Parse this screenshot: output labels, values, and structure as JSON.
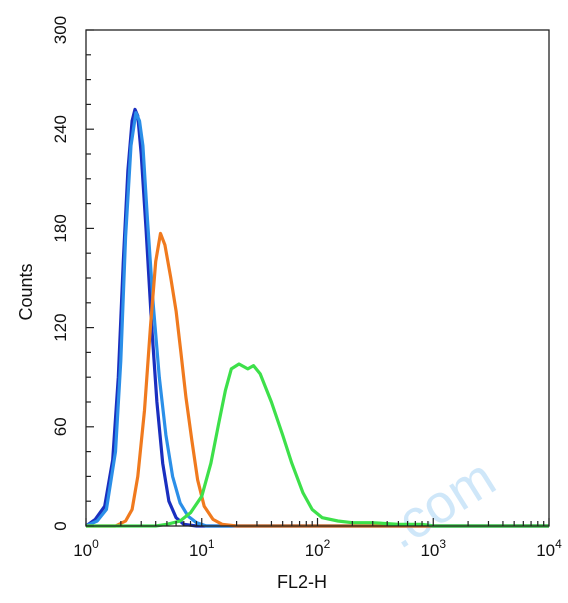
{
  "chart_data": {
    "type": "line",
    "title": "",
    "xlabel": "FL2-H",
    "ylabel": "Counts",
    "x_scale": "log",
    "xlim": [
      1,
      10000
    ],
    "ylim": [
      0,
      300
    ],
    "x_ticks": [
      {
        "base": "10",
        "exp": "0",
        "value": 1
      },
      {
        "base": "10",
        "exp": "1",
        "value": 10
      },
      {
        "base": "10",
        "exp": "2",
        "value": 100
      },
      {
        "base": "10",
        "exp": "3",
        "value": 1000
      },
      {
        "base": "10",
        "exp": "4",
        "value": 10000
      }
    ],
    "y_ticks": [
      {
        "label": "0",
        "value": 0
      },
      {
        "label": "60",
        "value": 60
      },
      {
        "label": "120",
        "value": 120
      },
      {
        "label": "180",
        "value": 180
      },
      {
        "label": "240",
        "value": 240
      },
      {
        "label": "300",
        "value": 300
      }
    ],
    "grid": false,
    "legend": "none",
    "series": [
      {
        "color": "#1a2fbf",
        "points": [
          [
            1,
            0
          ],
          [
            1.2,
            4
          ],
          [
            1.45,
            12
          ],
          [
            1.7,
            40
          ],
          [
            1.9,
            90
          ],
          [
            2.1,
            160
          ],
          [
            2.3,
            215
          ],
          [
            2.5,
            245
          ],
          [
            2.65,
            252
          ],
          [
            2.8,
            248
          ],
          [
            3.0,
            225
          ],
          [
            3.3,
            180
          ],
          [
            3.7,
            120
          ],
          [
            4.1,
            75
          ],
          [
            4.6,
            38
          ],
          [
            5.2,
            15
          ],
          [
            6.0,
            5
          ],
          [
            7.0,
            1
          ],
          [
            9.0,
            0
          ],
          [
            10000,
            0
          ]
        ]
      },
      {
        "color": "#2b8fe8",
        "points": [
          [
            1,
            0
          ],
          [
            1.25,
            3
          ],
          [
            1.5,
            10
          ],
          [
            1.8,
            45
          ],
          [
            2.0,
            100
          ],
          [
            2.2,
            175
          ],
          [
            2.45,
            230
          ],
          [
            2.7,
            250
          ],
          [
            2.9,
            245
          ],
          [
            3.1,
            230
          ],
          [
            3.4,
            185
          ],
          [
            3.8,
            135
          ],
          [
            4.3,
            90
          ],
          [
            4.9,
            55
          ],
          [
            5.6,
            30
          ],
          [
            6.5,
            14
          ],
          [
            7.6,
            6
          ],
          [
            9.0,
            2
          ],
          [
            11,
            0
          ],
          [
            10000,
            0
          ]
        ]
      },
      {
        "color": "#f07a1e",
        "points": [
          [
            1,
            0
          ],
          [
            1.8,
            0
          ],
          [
            2.2,
            3
          ],
          [
            2.5,
            10
          ],
          [
            2.8,
            30
          ],
          [
            3.2,
            70
          ],
          [
            3.6,
            120
          ],
          [
            4.0,
            160
          ],
          [
            4.4,
            177
          ],
          [
            4.8,
            170
          ],
          [
            5.4,
            150
          ],
          [
            6.0,
            130
          ],
          [
            6.6,
            105
          ],
          [
            7.3,
            78
          ],
          [
            8.2,
            52
          ],
          [
            9.2,
            28
          ],
          [
            10.5,
            12
          ],
          [
            12.5,
            4
          ],
          [
            15,
            1
          ],
          [
            20,
            0
          ],
          [
            10000,
            0
          ]
        ]
      },
      {
        "color": "#3de04a",
        "points": [
          [
            1,
            0
          ],
          [
            4,
            0
          ],
          [
            5,
            1
          ],
          [
            6.5,
            3
          ],
          [
            8,
            8
          ],
          [
            10,
            18
          ],
          [
            12,
            38
          ],
          [
            14,
            62
          ],
          [
            16,
            82
          ],
          [
            18,
            95
          ],
          [
            21,
            98
          ],
          [
            25,
            95
          ],
          [
            28,
            97
          ],
          [
            32,
            92
          ],
          [
            40,
            75
          ],
          [
            50,
            55
          ],
          [
            60,
            38
          ],
          [
            75,
            20
          ],
          [
            90,
            10
          ],
          [
            110,
            5
          ],
          [
            150,
            3
          ],
          [
            200,
            2
          ],
          [
            300,
            2
          ],
          [
            500,
            1
          ],
          [
            800,
            1
          ],
          [
            1000,
            0
          ],
          [
            10000,
            0
          ]
        ]
      }
    ]
  },
  "watermark": {
    "text": ".com",
    "color": "#a9d4f5"
  }
}
